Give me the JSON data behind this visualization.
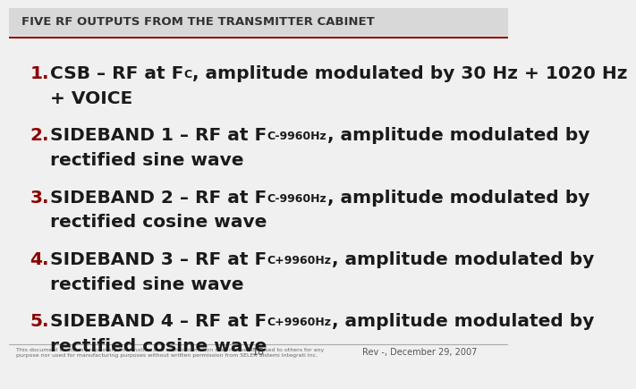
{
  "title": "FIVE RF OUTPUTS FROM THE TRANSMITTER CABINET",
  "title_color": "#333333",
  "title_bg": "#d8d8d8",
  "title_line_color": "#8b0000",
  "bg_color": "#f0f0f0",
  "number_color": "#8b0000",
  "text_color": "#1a1a1a",
  "footer_text": "This document contains proprietary information and such information may not be disclosed to others for any\npurpose nor used for manufacturing purposes without written permission from SELEX Sistemi Integrati Inc.",
  "footer_page": "18",
  "footer_rev": "Rev -, December 29, 2007",
  "items": [
    {
      "num": "1.",
      "pre": "CSB – RF at F",
      "sub": "C",
      "post": ", amplitude modulated by 30 Hz + 1020 Hz",
      "line2": "+ VOICE"
    },
    {
      "num": "2.",
      "pre": "SIDEBAND 1 – RF at F",
      "sub": "C-9960Hz",
      "post": ", amplitude modulated by",
      "line2": "rectified sine wave"
    },
    {
      "num": "3.",
      "pre": "SIDEBAND 2 – RF at F",
      "sub": "C-9960Hz",
      "post": ", amplitude modulated by",
      "line2": "rectified cosine wave"
    },
    {
      "num": "4.",
      "pre": "SIDEBAND 3 – RF at F",
      "sub": "C+9960Hz",
      "post": ", amplitude modulated by",
      "line2": "rectified sine wave"
    },
    {
      "num": "5.",
      "pre": "SIDEBAND 4 – RF at F",
      "sub": "C+9960Hz",
      "post": ", amplitude modulated by",
      "line2": "rectified cosine wave"
    }
  ]
}
